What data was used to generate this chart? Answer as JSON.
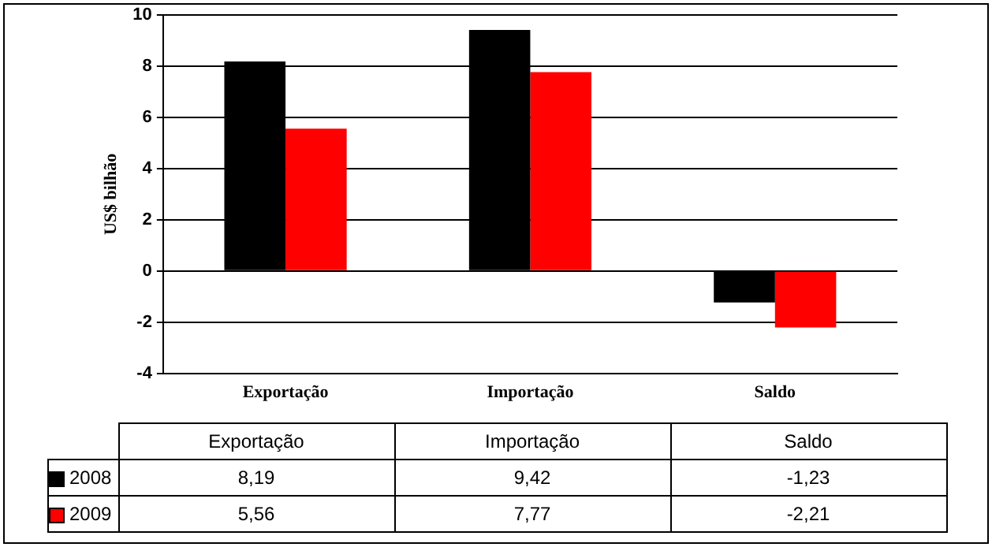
{
  "chart_data": {
    "type": "bar",
    "ylabel": "US$ bilhão",
    "categories": [
      "Exportação",
      "Importação",
      "Saldo"
    ],
    "series": [
      {
        "name": "2008",
        "color": "#000000",
        "values": [
          8.19,
          9.42,
          -1.23
        ],
        "value_labels": [
          "8,19",
          "9,42",
          "-1,23"
        ]
      },
      {
        "name": "2009",
        "color": "#ff0000",
        "values": [
          5.56,
          7.77,
          -2.21
        ],
        "value_labels": [
          "5,56",
          "7,77",
          "-2,21"
        ]
      }
    ],
    "ylim": [
      -4,
      10
    ],
    "yticks": [
      -4,
      -2,
      0,
      2,
      4,
      6,
      8,
      10
    ],
    "grid": "y",
    "legend": "bottom"
  }
}
